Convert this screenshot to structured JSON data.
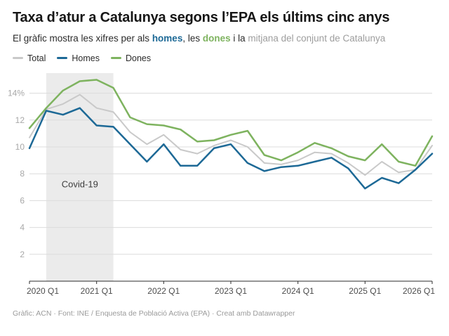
{
  "header": {
    "title": "Taxa d’atur a Catalunya segons l’EPA els últims cinc anys",
    "subtitle_prefix": "El gràfic mostra les xifres per als ",
    "subtitle_homes": "homes",
    "subtitle_mid1": ", les ",
    "subtitle_dones": "dones",
    "subtitle_mid2": " i la ",
    "subtitle_mitjana": "mitjana del conjunt de Catalunya"
  },
  "chart_data": {
    "type": "line",
    "title": "Taxa d’atur a Catalunya segons l’EPA els últims cinc anys",
    "x": [
      "2020 Q1",
      "2020 Q2",
      "2020 Q3",
      "2020 Q4",
      "2021 Q1",
      "2021 Q2",
      "2021 Q3",
      "2021 Q4",
      "2022 Q1",
      "2022 Q2",
      "2022 Q3",
      "2022 Q4",
      "2023 Q1",
      "2023 Q2",
      "2023 Q3",
      "2023 Q4",
      "2024 Q1",
      "2024 Q2",
      "2024 Q3",
      "2024 Q4",
      "2025 Q1",
      "2025 Q2",
      "2025 Q3",
      "2025 Q4",
      "2026 Q1"
    ],
    "series": [
      {
        "name": "Total",
        "color": "#c9c9c9",
        "values": [
          10.7,
          12.8,
          13.2,
          13.9,
          12.9,
          12.6,
          11.1,
          10.2,
          10.9,
          9.8,
          9.5,
          10.1,
          10.5,
          10.0,
          8.8,
          8.7,
          9.0,
          9.6,
          9.5,
          8.8,
          7.9,
          8.9,
          8.1,
          8.3,
          10.1
        ]
      },
      {
        "name": "Homes",
        "color": "#1d6996",
        "values": [
          9.9,
          12.7,
          12.4,
          12.9,
          11.6,
          11.5,
          10.2,
          8.9,
          10.2,
          8.6,
          8.6,
          9.9,
          10.2,
          8.8,
          8.2,
          8.5,
          8.6,
          8.9,
          9.2,
          8.4,
          6.9,
          7.7,
          7.3,
          8.3,
          9.5
        ]
      },
      {
        "name": "Dones",
        "color": "#7eb35f",
        "values": [
          11.4,
          12.9,
          14.2,
          14.9,
          15.0,
          14.4,
          12.2,
          11.7,
          11.6,
          11.3,
          10.4,
          10.5,
          10.9,
          11.2,
          9.4,
          9.0,
          9.6,
          10.3,
          9.9,
          9.3,
          9.0,
          10.2,
          8.9,
          8.6,
          10.8
        ]
      }
    ],
    "x_tick_labels": [
      "2020 Q1",
      "2021 Q1",
      "2022 Q1",
      "2023 Q1",
      "2024 Q1",
      "2025 Q1",
      "2026 Q1"
    ],
    "y_ticks": [
      2,
      4,
      6,
      8,
      10,
      12,
      14
    ],
    "y_top_label": "14%",
    "ylim": [
      0,
      15.5
    ],
    "grid": true,
    "legend_position": "top",
    "annotation": {
      "label": "Covid-19",
      "x_from": "2020 Q2",
      "x_to": "2021 Q2",
      "label_value": 7
    }
  },
  "footer": {
    "credit": "Gràfic: ACN · Font: INE / Enquesta de Població Activa (EPA) · Creat amb Datawrapper"
  }
}
